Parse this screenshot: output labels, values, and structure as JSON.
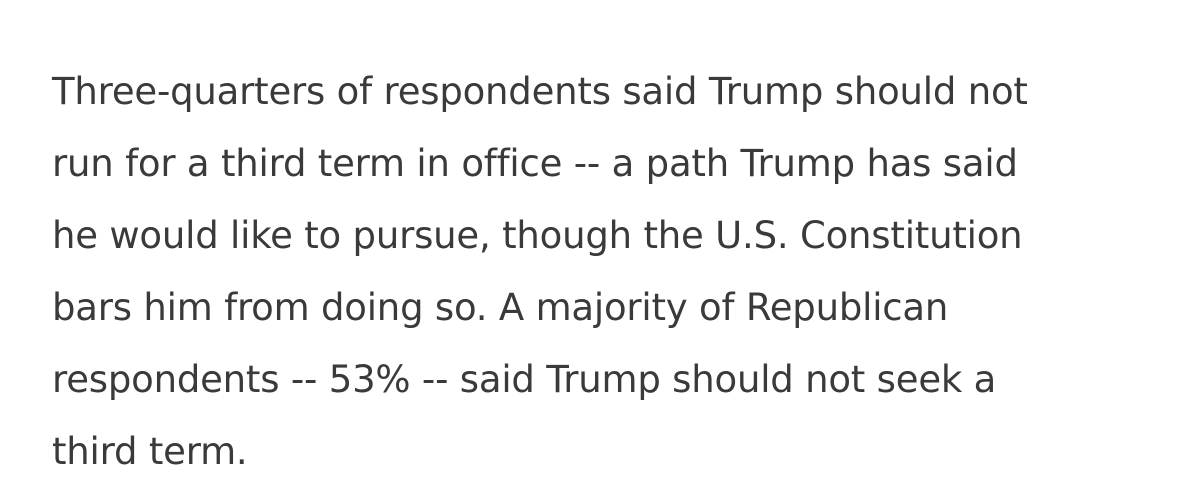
{
  "article": {
    "paragraph_lines": [
      "Three-quarters of respondents said Trump should not",
      "run for a third term in office -- a path Trump has said",
      "he would like to pursue, though the U.S. Constitution",
      "bars him from doing so. A majority of Republican",
      "respondents -- 53% -- said Trump should not seek a",
      "third term."
    ]
  }
}
